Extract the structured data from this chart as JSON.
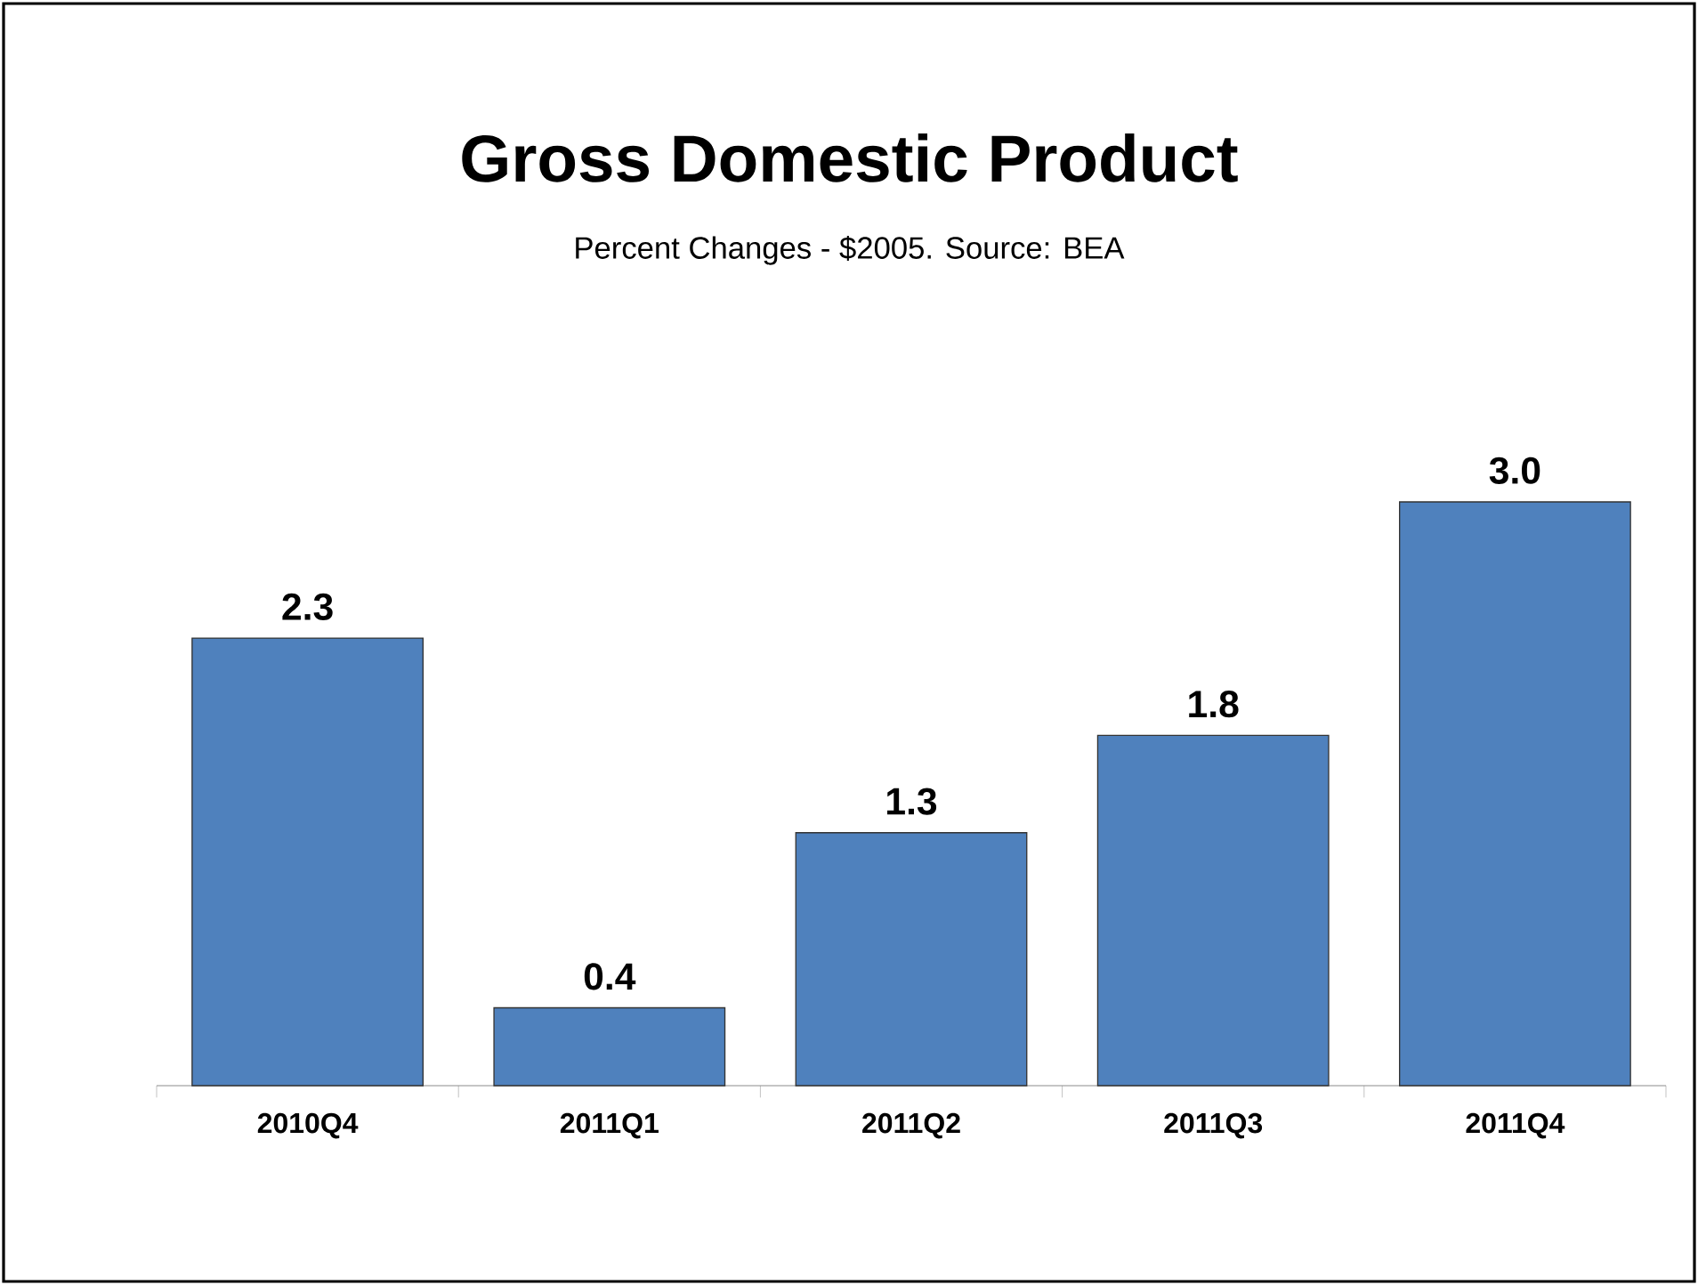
{
  "chart_data": {
    "type": "bar",
    "title": "Gross Domestic Product",
    "subtitle": "Percent Changes - $2005.  Source: BEA",
    "categories": [
      "2010Q4",
      "2011Q1",
      "2011Q2",
      "2011Q3",
      "2011Q4"
    ],
    "values": [
      2.3,
      0.4,
      1.3,
      1.8,
      3.0
    ],
    "value_labels": [
      "2.3",
      "0.4",
      "1.3",
      "1.8",
      "3.0"
    ],
    "color": "#4f81bd"
  }
}
